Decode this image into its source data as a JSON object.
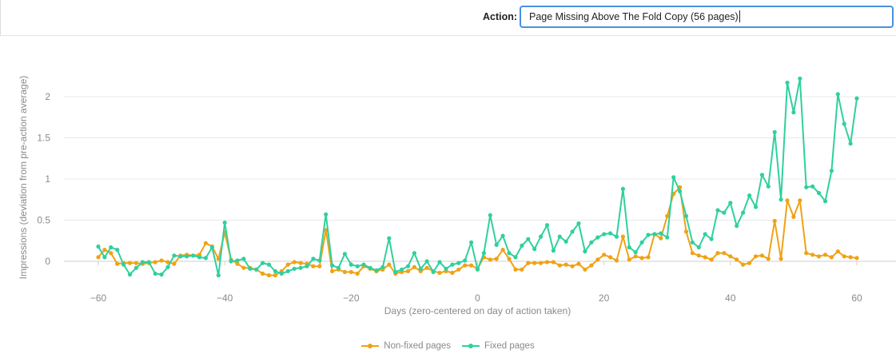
{
  "header": {
    "action_label": "Action:",
    "action_value": "Page Missing Above The Fold Copy (56 pages)"
  },
  "colors": {
    "nonfixed": "#f0a215",
    "fixed": "#2fd09e",
    "grid": "#e8e8e8",
    "axis": "#cfcfcf"
  },
  "chart_data": {
    "type": "line",
    "xlabel": "Days (zero-centered on day of action taken)",
    "ylabel": "Impressions (deviation from pre-action average)",
    "xlim": [
      -61,
      61
    ],
    "ylim": [
      -0.2,
      2.3
    ],
    "xticks": [
      -60,
      -40,
      -20,
      0,
      20,
      40,
      60
    ],
    "yticks": [
      0,
      0.5,
      1,
      1.5,
      2
    ],
    "ytick_labels": [
      "0",
      "0.5",
      "1",
      "1.5",
      "2"
    ],
    "legend_position": "bottom-center",
    "x": [
      -60,
      -59,
      -58,
      -57,
      -56,
      -55,
      -54,
      -53,
      -52,
      -51,
      -50,
      -49,
      -48,
      -47,
      -46,
      -45,
      -44,
      -43,
      -42,
      -41,
      -40,
      -39,
      -38,
      -37,
      -36,
      -35,
      -34,
      -33,
      -32,
      -31,
      -30,
      -29,
      -28,
      -27,
      -26,
      -25,
      -24,
      -23,
      -22,
      -21,
      -20,
      -19,
      -18,
      -17,
      -16,
      -15,
      -14,
      -13,
      -12,
      -11,
      -10,
      -9,
      -8,
      -7,
      -6,
      -5,
      -4,
      -3,
      -2,
      -1,
      0,
      1,
      2,
      3,
      4,
      5,
      6,
      7,
      8,
      9,
      10,
      11,
      12,
      13,
      14,
      15,
      16,
      17,
      18,
      19,
      20,
      21,
      22,
      23,
      24,
      25,
      26,
      27,
      28,
      29,
      30,
      31,
      32,
      33,
      34,
      35,
      36,
      37,
      38,
      39,
      40,
      41,
      42,
      43,
      44,
      45,
      46,
      47,
      48,
      49,
      50,
      51,
      52,
      53,
      54,
      55,
      56,
      57,
      58,
      59,
      60
    ],
    "series": [
      {
        "name": "Non-fixed pages",
        "values": [
          0.05,
          0.14,
          0.1,
          -0.03,
          -0.02,
          -0.02,
          -0.02,
          -0.03,
          -0.02,
          -0.01,
          0.01,
          -0.01,
          -0.03,
          0.07,
          0.08,
          0.07,
          0.08,
          0.22,
          0.18,
          0.03,
          0.35,
          0.02,
          -0.03,
          -0.08,
          -0.08,
          -0.1,
          -0.15,
          -0.17,
          -0.17,
          -0.12,
          -0.04,
          -0.01,
          -0.02,
          -0.03,
          -0.06,
          -0.06,
          0.38,
          -0.12,
          -0.1,
          -0.13,
          -0.13,
          -0.15,
          -0.06,
          -0.09,
          -0.12,
          -0.1,
          -0.04,
          -0.15,
          -0.13,
          -0.12,
          -0.07,
          -0.12,
          -0.08,
          -0.12,
          -0.14,
          -0.12,
          -0.14,
          -0.1,
          -0.05,
          -0.05,
          -0.09,
          0.05,
          0.02,
          0.03,
          0.14,
          0.03,
          -0.1,
          -0.1,
          -0.02,
          -0.02,
          -0.02,
          -0.01,
          -0.01,
          -0.05,
          -0.04,
          -0.06,
          -0.03,
          -0.1,
          -0.05,
          0.02,
          0.08,
          0.05,
          0.01,
          0.3,
          0.02,
          0.06,
          0.04,
          0.05,
          0.33,
          0.28,
          0.55,
          0.82,
          0.9,
          0.36,
          0.1,
          0.07,
          0.05,
          0.02,
          0.1,
          0.1,
          0.06,
          0.02,
          -0.04,
          -0.02,
          0.06,
          0.07,
          0.03,
          0.49,
          0.03,
          0.74,
          0.54,
          0.74,
          0.1,
          0.08,
          0.06,
          0.08,
          0.05,
          0.12,
          0.06,
          0.05,
          0.04
        ]
      },
      {
        "name": "Fixed pages",
        "values": [
          0.18,
          0.05,
          0.17,
          0.14,
          -0.04,
          -0.16,
          -0.08,
          -0.01,
          -0.01,
          -0.15,
          -0.16,
          -0.07,
          0.07,
          0.06,
          0.06,
          0.07,
          0.05,
          0.04,
          0.17,
          -0.17,
          0.47,
          0.0,
          0.01,
          0.03,
          -0.09,
          -0.1,
          -0.02,
          -0.04,
          -0.12,
          -0.15,
          -0.12,
          -0.09,
          -0.08,
          -0.06,
          0.03,
          0.01,
          0.57,
          -0.05,
          -0.08,
          0.09,
          -0.04,
          -0.06,
          -0.04,
          -0.08,
          -0.11,
          -0.07,
          0.28,
          -0.13,
          -0.1,
          -0.06,
          0.1,
          -0.09,
          0.0,
          -0.13,
          -0.01,
          -0.09,
          -0.04,
          -0.02,
          0.01,
          0.23,
          -0.1,
          0.1,
          0.56,
          0.2,
          0.31,
          0.1,
          0.05,
          0.19,
          0.27,
          0.15,
          0.3,
          0.44,
          0.13,
          0.3,
          0.24,
          0.36,
          0.46,
          0.12,
          0.23,
          0.29,
          0.33,
          0.34,
          0.3,
          0.88,
          0.17,
          0.11,
          0.23,
          0.32,
          0.33,
          0.34,
          0.29,
          1.02,
          0.85,
          0.55,
          0.23,
          0.17,
          0.33,
          0.27,
          0.62,
          0.59,
          0.71,
          0.43,
          0.59,
          0.8,
          0.66,
          1.05,
          0.91,
          1.57,
          0.75,
          2.17,
          1.81,
          2.22,
          0.9,
          0.91,
          0.83,
          0.73,
          1.1,
          2.03,
          1.67,
          1.43,
          1.98
        ]
      }
    ]
  }
}
